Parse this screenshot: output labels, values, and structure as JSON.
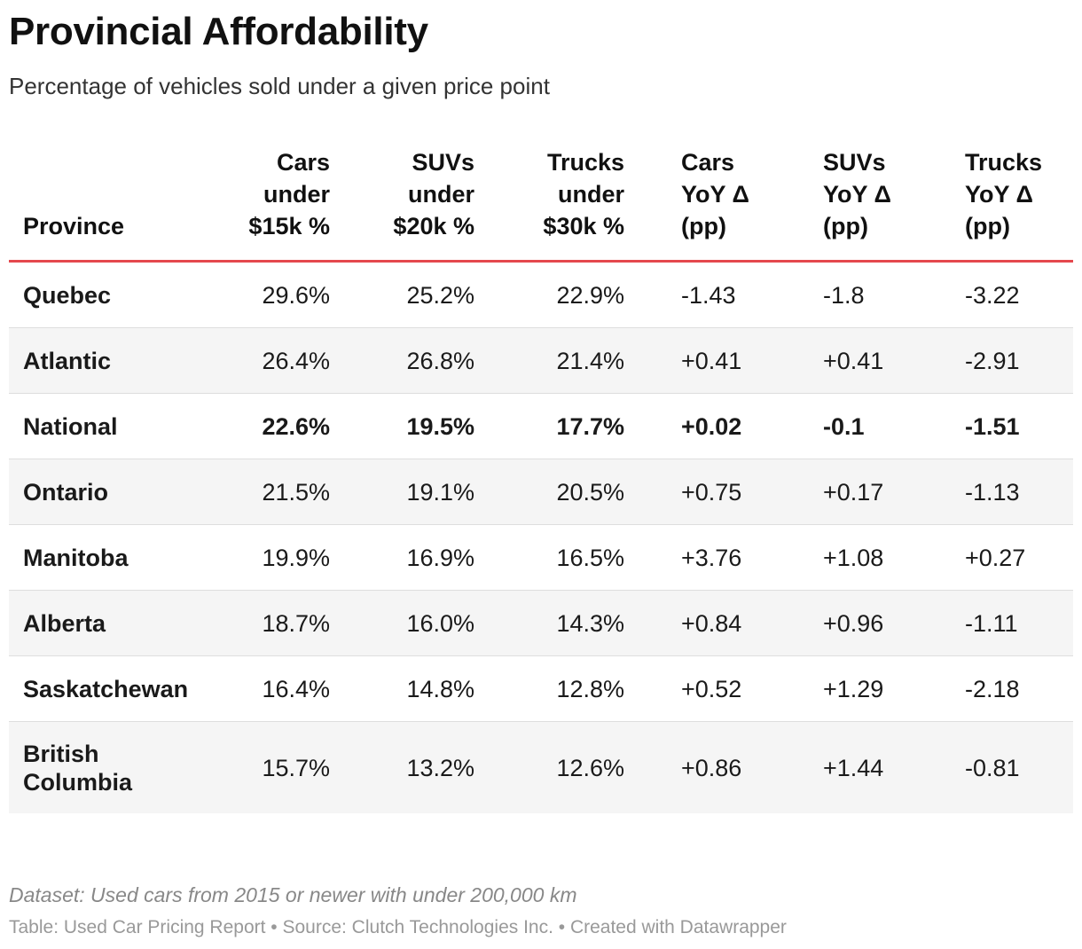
{
  "chart_data": {
    "type": "table",
    "title": "Provincial Affordability",
    "subtitle": "Percentage of vehicles sold under a given price point",
    "columns": [
      "Province",
      "Cars under $15k %",
      "SUVs under $20k %",
      "Trucks under $30k %",
      "Cars YoY Δ (pp)",
      "SUVs YoY Δ (pp)",
      "Trucks YoY Δ (pp)"
    ],
    "rows": [
      [
        "Quebec",
        "29.6%",
        "25.2%",
        "22.9%",
        "-1.43",
        "-1.8",
        "-3.22"
      ],
      [
        "Atlantic",
        "26.4%",
        "26.8%",
        "21.4%",
        "+0.41",
        "+0.41",
        "-2.91"
      ],
      [
        "National",
        "22.6%",
        "19.5%",
        "17.7%",
        "+0.02",
        "-0.1",
        "-1.51"
      ],
      [
        "Ontario",
        "21.5%",
        "19.1%",
        "20.5%",
        "+0.75",
        "+0.17",
        "-1.13"
      ],
      [
        "Manitoba",
        "19.9%",
        "16.9%",
        "16.5%",
        "+3.76",
        "+1.08",
        "+0.27"
      ],
      [
        "Alberta",
        "18.7%",
        "16.0%",
        "14.3%",
        "+0.84",
        "+0.96",
        "-1.11"
      ],
      [
        "Saskatchewan",
        "16.4%",
        "14.8%",
        "12.8%",
        "+0.52",
        "+1.29",
        "-2.18"
      ],
      [
        "British Columbia",
        "15.7%",
        "13.2%",
        "12.6%",
        "+0.86",
        "+1.44",
        "-0.81"
      ]
    ],
    "highlighted_row": "National",
    "header_rule_color": "#e5484d",
    "stripe_color": "#f5f5f5"
  },
  "footer": {
    "dataset_note": "Dataset: Used cars from 2015 or newer with under 200,000 km",
    "source_line": "Table: Used Car Pricing Report • Source: Clutch Technologies Inc. • Created with Datawrapper"
  }
}
